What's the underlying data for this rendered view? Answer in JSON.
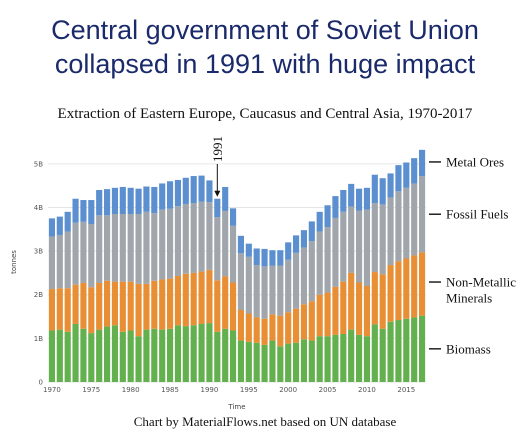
{
  "headline": {
    "line1": "Central government of Soviet Union",
    "line2": "collapsed in 1991 with huge impact"
  },
  "footer": "Chart by MaterialFlows.net based on UN database",
  "chart_data": {
    "type": "bar",
    "stacked": true,
    "title": "Extraction of Eastern Europe, Caucasus and Central Asia, 1970-2017",
    "xlabel": "Time",
    "ylabel": "tonnes",
    "ylim": [
      0,
      5.5
    ],
    "y_tick_values": [
      0,
      1,
      2,
      3,
      4,
      5
    ],
    "y_tick_labels": [
      "0",
      "1B",
      "2B",
      "3B",
      "4B",
      "5B"
    ],
    "x_tick_labels": [
      "1970",
      "1975",
      "1980",
      "1985",
      "1990",
      "1995",
      "2000",
      "2005",
      "2010",
      "2015"
    ],
    "grid": true,
    "legend_placement": "right",
    "annotation": {
      "label": "1991",
      "year": 1991
    },
    "x": [
      1970,
      1971,
      1972,
      1973,
      1974,
      1975,
      1976,
      1977,
      1978,
      1979,
      1980,
      1981,
      1982,
      1983,
      1984,
      1985,
      1986,
      1987,
      1988,
      1989,
      1990,
      1991,
      1992,
      1993,
      1994,
      1995,
      1996,
      1997,
      1998,
      1999,
      2000,
      2001,
      2002,
      2003,
      2004,
      2005,
      2006,
      2007,
      2008,
      2009,
      2010,
      2011,
      2012,
      2013,
      2014,
      2015,
      2016,
      2017
    ],
    "series": [
      {
        "name": "Biomass",
        "color": "#62b04e",
        "values": [
          1.18,
          1.2,
          1.15,
          1.33,
          1.22,
          1.12,
          1.2,
          1.27,
          1.3,
          1.15,
          1.18,
          1.05,
          1.2,
          1.22,
          1.2,
          1.22,
          1.3,
          1.28,
          1.3,
          1.33,
          1.35,
          1.15,
          1.22,
          1.18,
          0.95,
          0.92,
          0.9,
          0.85,
          0.95,
          0.82,
          0.88,
          0.9,
          0.98,
          0.95,
          1.05,
          1.05,
          1.08,
          1.1,
          1.2,
          1.08,
          1.05,
          1.32,
          1.22,
          1.38,
          1.42,
          1.45,
          1.48,
          1.52
        ]
      },
      {
        "name": "Non-Metallic Minerals",
        "color": "#e88f35",
        "values": [
          0.95,
          0.95,
          1.0,
          0.9,
          1.05,
          1.05,
          1.07,
          1.05,
          1.0,
          1.15,
          1.12,
          1.2,
          1.05,
          1.1,
          1.15,
          1.15,
          1.13,
          1.2,
          1.2,
          1.2,
          1.22,
          1.18,
          1.2,
          1.1,
          0.7,
          0.65,
          0.58,
          0.6,
          0.6,
          0.7,
          0.72,
          0.78,
          0.8,
          0.9,
          0.95,
          1.0,
          1.1,
          1.2,
          1.3,
          1.2,
          1.15,
          1.2,
          1.25,
          1.3,
          1.35,
          1.38,
          1.42,
          1.45
        ]
      },
      {
        "name": "Fossil Fuels",
        "color": "#a0a6ab",
        "values": [
          1.2,
          1.22,
          1.3,
          1.42,
          1.4,
          1.45,
          1.55,
          1.5,
          1.55,
          1.55,
          1.55,
          1.6,
          1.65,
          1.55,
          1.6,
          1.6,
          1.6,
          1.6,
          1.6,
          1.6,
          1.55,
          1.45,
          1.5,
          1.3,
          1.3,
          1.3,
          1.2,
          1.2,
          1.12,
          1.15,
          1.2,
          1.28,
          1.3,
          1.38,
          1.45,
          1.5,
          1.58,
          1.6,
          1.52,
          1.65,
          1.75,
          1.58,
          1.6,
          1.55,
          1.6,
          1.62,
          1.65,
          1.75
        ]
      },
      {
        "name": "Metal Ores",
        "color": "#5b8fcf",
        "values": [
          0.42,
          0.42,
          0.45,
          0.55,
          0.5,
          0.55,
          0.58,
          0.6,
          0.6,
          0.62,
          0.6,
          0.58,
          0.58,
          0.6,
          0.6,
          0.63,
          0.6,
          0.6,
          0.62,
          0.6,
          0.5,
          0.42,
          0.55,
          0.4,
          0.4,
          0.3,
          0.38,
          0.4,
          0.35,
          0.35,
          0.4,
          0.4,
          0.4,
          0.45,
          0.45,
          0.5,
          0.5,
          0.5,
          0.52,
          0.5,
          0.5,
          0.65,
          0.6,
          0.55,
          0.6,
          0.58,
          0.58,
          0.6
        ]
      }
    ]
  }
}
